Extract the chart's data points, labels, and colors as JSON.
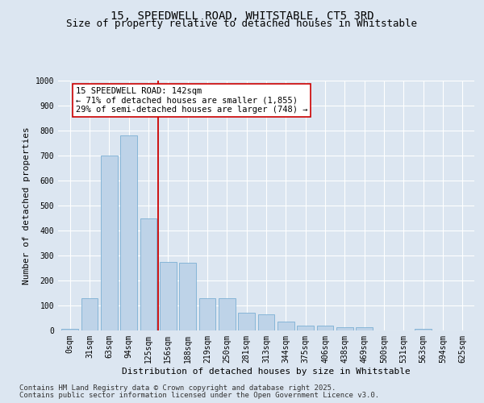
{
  "title": "15, SPEEDWELL ROAD, WHITSTABLE, CT5 3RD",
  "subtitle": "Size of property relative to detached houses in Whitstable",
  "xlabel": "Distribution of detached houses by size in Whitstable",
  "ylabel": "Number of detached properties",
  "categories": [
    "0sqm",
    "31sqm",
    "63sqm",
    "94sqm",
    "125sqm",
    "156sqm",
    "188sqm",
    "219sqm",
    "250sqm",
    "281sqm",
    "313sqm",
    "344sqm",
    "375sqm",
    "406sqm",
    "438sqm",
    "469sqm",
    "500sqm",
    "531sqm",
    "563sqm",
    "594sqm",
    "625sqm"
  ],
  "values": [
    5,
    130,
    700,
    780,
    450,
    275,
    270,
    130,
    130,
    70,
    65,
    35,
    20,
    20,
    12,
    12,
    0,
    0,
    5,
    0,
    0
  ],
  "bar_color": "#bed3e8",
  "bar_edge_color": "#7bafd4",
  "vline_x": 4.5,
  "vline_color": "#cc0000",
  "annotation_text": "15 SPEEDWELL ROAD: 142sqm\n← 71% of detached houses are smaller (1,855)\n29% of semi-detached houses are larger (748) →",
  "annotation_box_color": "#ffffff",
  "annotation_box_edge": "#cc0000",
  "ylim": [
    0,
    1000
  ],
  "yticks": [
    0,
    100,
    200,
    300,
    400,
    500,
    600,
    700,
    800,
    900,
    1000
  ],
  "bg_color": "#dce6f1",
  "plot_bg_color": "#dce6f1",
  "footer_line1": "Contains HM Land Registry data © Crown copyright and database right 2025.",
  "footer_line2": "Contains public sector information licensed under the Open Government Licence v3.0.",
  "title_fontsize": 10,
  "subtitle_fontsize": 9,
  "axis_label_fontsize": 8,
  "tick_fontsize": 7,
  "annotation_fontsize": 7.5,
  "footer_fontsize": 6.5
}
